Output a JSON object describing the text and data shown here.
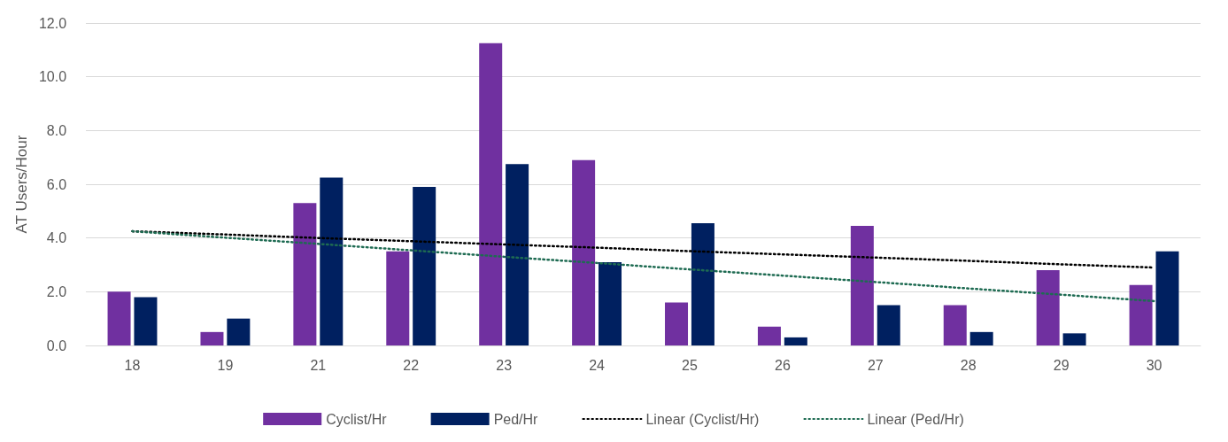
{
  "chart_data": {
    "type": "bar",
    "ylabel": "AT Users/Hour",
    "categories": [
      "18",
      "19",
      "21",
      "22",
      "23",
      "24",
      "25",
      "26",
      "27",
      "28",
      "29",
      "30"
    ],
    "series": [
      {
        "name": "Cyclist/Hr",
        "color": "#7030a0",
        "values": [
          2.0,
          0.5,
          5.3,
          3.5,
          11.25,
          6.9,
          1.6,
          0.7,
          4.45,
          1.5,
          2.8,
          2.25
        ]
      },
      {
        "name": "Ped/Hr",
        "color": "#002060",
        "values": [
          1.8,
          1.0,
          6.25,
          5.9,
          6.75,
          3.1,
          4.55,
          0.3,
          1.5,
          0.5,
          0.45,
          3.5
        ]
      },
      {
        "name": "Linear (Cyclist/Hr)",
        "type": "line",
        "color": "#000000",
        "line_style": "dotted",
        "values": [
          4.25,
          4.13,
          4.0,
          3.88,
          3.76,
          3.64,
          3.51,
          3.39,
          3.27,
          3.15,
          3.02,
          2.9
        ]
      },
      {
        "name": "Linear (Ped/Hr)",
        "type": "line",
        "color": "#1e6b52",
        "line_style": "dotted",
        "values": [
          4.25,
          4.01,
          3.78,
          3.54,
          3.3,
          3.07,
          2.83,
          2.6,
          2.36,
          2.12,
          1.89,
          1.65
        ]
      }
    ],
    "ylim": [
      0,
      12
    ],
    "yticks": [
      {
        "value": 0,
        "label": "0.0"
      },
      {
        "value": 2,
        "label": "2.0"
      },
      {
        "value": 4,
        "label": "4.0"
      },
      {
        "value": 6,
        "label": "6.0"
      },
      {
        "value": 8,
        "label": "8.0"
      },
      {
        "value": 10,
        "label": "10.0"
      },
      {
        "value": 12,
        "label": "12.0"
      }
    ],
    "grid": "y",
    "legend": "bottom",
    "marker": "none"
  }
}
